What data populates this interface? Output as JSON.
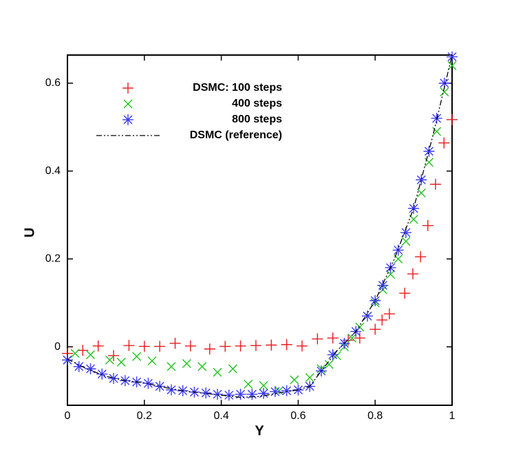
{
  "chart_data": {
    "type": "scatter",
    "xlabel": "Y",
    "ylabel": "U",
    "xlim": [
      0,
      1
    ],
    "ylim": [
      -0.133,
      0.664
    ],
    "xticks": [
      0,
      0.2,
      0.4,
      0.6,
      0.8,
      1
    ],
    "yticks": [
      0,
      0.2,
      0.4,
      0.6
    ],
    "legend": "upper left",
    "series": [
      {
        "name": "DSMC: 100 steps",
        "color": "#e8191c",
        "marker": "plus",
        "x": [
          0,
          0.04,
          0.08,
          0.12,
          0.16,
          0.2,
          0.24,
          0.28,
          0.32,
          0.37,
          0.41,
          0.45,
          0.49,
          0.53,
          0.57,
          0.61,
          0.65,
          0.69,
          0.73,
          0.76,
          0.8,
          0.818,
          0.837,
          0.877,
          0.898,
          0.918,
          0.937,
          0.957,
          0.979,
          1.0
        ],
        "values": [
          -0.015,
          -0.008,
          0.002,
          -0.02,
          0.003,
          0.001,
          0.001,
          0.008,
          0.002,
          -0.005,
          0.001,
          0.002,
          0.003,
          0.004,
          0.005,
          0.002,
          0.018,
          0.02,
          0.015,
          0.02,
          0.04,
          0.061,
          0.075,
          0.122,
          0.166,
          0.205,
          0.276,
          0.37,
          0.464,
          0.517
        ]
      },
      {
        "name": "400 steps",
        "color": "#22c31f",
        "marker": "cross",
        "x": [
          0,
          0.02,
          0.06,
          0.11,
          0.14,
          0.18,
          0.22,
          0.27,
          0.31,
          0.35,
          0.39,
          0.43,
          0.47,
          0.51,
          0.55,
          0.59,
          0.63,
          0.66,
          0.68,
          0.7,
          0.72,
          0.74,
          0.76,
          0.78,
          0.8,
          0.82,
          0.84,
          0.86,
          0.88,
          0.9,
          0.92,
          0.94,
          0.96,
          0.98,
          1.0
        ],
        "values": [
          -0.03,
          -0.015,
          -0.018,
          -0.03,
          -0.035,
          -0.022,
          -0.032,
          -0.045,
          -0.038,
          -0.045,
          -0.058,
          -0.05,
          -0.085,
          -0.088,
          -0.1,
          -0.075,
          -0.07,
          -0.05,
          -0.04,
          -0.02,
          0.0,
          0.02,
          0.045,
          0.07,
          0.1,
          0.13,
          0.165,
          0.2,
          0.24,
          0.29,
          0.35,
          0.42,
          0.49,
          0.58,
          0.64
        ]
      },
      {
        "name": "800 steps",
        "color": "#3b3bf5",
        "marker": "star",
        "x": [
          0,
          0.03,
          0.06,
          0.09,
          0.12,
          0.15,
          0.18,
          0.21,
          0.24,
          0.27,
          0.3,
          0.33,
          0.36,
          0.39,
          0.42,
          0.45,
          0.48,
          0.51,
          0.54,
          0.57,
          0.6,
          0.63,
          0.66,
          0.69,
          0.72,
          0.75,
          0.78,
          0.8,
          0.82,
          0.84,
          0.86,
          0.88,
          0.9,
          0.92,
          0.94,
          0.96,
          0.98,
          1.0
        ],
        "values": [
          -0.03,
          -0.045,
          -0.05,
          -0.062,
          -0.072,
          -0.077,
          -0.08,
          -0.083,
          -0.09,
          -0.098,
          -0.1,
          -0.103,
          -0.105,
          -0.108,
          -0.11,
          -0.108,
          -0.108,
          -0.106,
          -0.102,
          -0.1,
          -0.098,
          -0.09,
          -0.055,
          -0.018,
          0.008,
          0.035,
          0.07,
          0.105,
          0.14,
          0.18,
          0.22,
          0.26,
          0.315,
          0.38,
          0.445,
          0.52,
          0.6,
          0.66
        ]
      },
      {
        "name": "DSMC (reference)",
        "color": "#000000",
        "marker": "line",
        "x": [
          0,
          0.05,
          0.1,
          0.15,
          0.2,
          0.25,
          0.3,
          0.35,
          0.4,
          0.45,
          0.5,
          0.55,
          0.6,
          0.63,
          0.66,
          0.7,
          0.75,
          0.8,
          0.85,
          0.9,
          0.95,
          1.0
        ],
        "values": [
          -0.028,
          -0.05,
          -0.067,
          -0.077,
          -0.082,
          -0.092,
          -0.1,
          -0.105,
          -0.11,
          -0.115,
          -0.113,
          -0.105,
          -0.098,
          -0.09,
          -0.055,
          -0.01,
          0.035,
          0.105,
          0.2,
          0.315,
          0.48,
          0.664
        ]
      }
    ]
  }
}
